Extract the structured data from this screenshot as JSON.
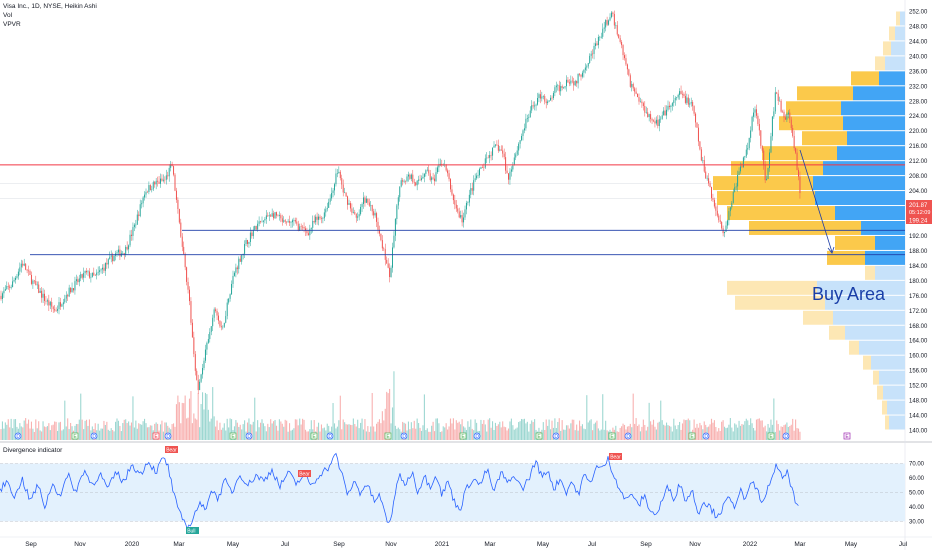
{
  "header": {
    "symbol_line": "Visa Inc., 1D, NYSE, Heikin Ashi",
    "vol_label": "Vol",
    "vpvr_label": "VPVR"
  },
  "oscillator": {
    "title": "Divergence indicator",
    "axis_labels": [
      "70.00",
      "60.00",
      "50.00",
      "40.00",
      "30.00"
    ]
  },
  "price_axis": {
    "labels": [
      "252.00",
      "248.00",
      "244.00",
      "240.00",
      "236.00",
      "232.00",
      "228.00",
      "224.00",
      "220.00",
      "216.00",
      "212.00",
      "208.00",
      "204.00",
      "200.00",
      "196.00",
      "192.00",
      "188.00",
      "184.00",
      "180.00",
      "176.00",
      "172.00",
      "168.00",
      "164.00",
      "160.00",
      "156.00",
      "152.00",
      "148.00",
      "144.00",
      "140.00"
    ],
    "last_price": "201.87",
    "countdown": "05:12:09",
    "second_price": "199.24"
  },
  "time_axis": {
    "labels": [
      "Sep",
      "Nov",
      "2020",
      "Mar",
      "May",
      "Jul",
      "Sep",
      "Nov",
      "2021",
      "Mar",
      "May",
      "Jul",
      "Sep",
      "Nov",
      "2022",
      "Mar",
      "May",
      "Jul"
    ]
  },
  "annotations": {
    "buy_area": "Buy Area",
    "bear_tag": "Bear",
    "bull_tag": "Bull",
    "div_marker": "D",
    "earn_marker": "E"
  },
  "colors": {
    "up_candle": "#26a69a",
    "down_candle": "#ef5350",
    "resistance_line": "#f23645",
    "support_line": "#1e3ea8",
    "vpvr_value_area_up": "#42a5f5",
    "vpvr_value_area_down": "#fbc94b",
    "vpvr_outer_up": "#c7e2fa",
    "vpvr_outer_down": "#fde7b4",
    "oscillator_line": "#2962ff",
    "oscillator_band": "#e3f1fd",
    "buy_area_text": "#1a3fa8"
  },
  "chart_data": {
    "type": "candlestick",
    "ylim": [
      138,
      254
    ],
    "oscillator_ylim": [
      24,
      78
    ],
    "horizontal_levels": [
      211,
      193.5,
      187
    ],
    "price_path": [
      [
        0,
        176
      ],
      [
        12,
        179
      ],
      [
        22,
        185
      ],
      [
        32,
        180
      ],
      [
        45,
        175
      ],
      [
        55,
        172
      ],
      [
        65,
        176
      ],
      [
        75,
        179
      ],
      [
        85,
        182
      ],
      [
        95,
        181
      ],
      [
        105,
        184
      ],
      [
        115,
        187
      ],
      [
        125,
        188
      ],
      [
        135,
        195
      ],
      [
        145,
        204
      ],
      [
        155,
        206
      ],
      [
        165,
        207
      ],
      [
        172,
        211
      ],
      [
        178,
        198
      ],
      [
        183,
        188
      ],
      [
        188,
        178
      ],
      [
        193,
        163
      ],
      [
        198,
        150
      ],
      [
        203,
        158
      ],
      [
        210,
        166
      ],
      [
        215,
        173
      ],
      [
        222,
        166
      ],
      [
        228,
        175
      ],
      [
        234,
        182
      ],
      [
        240,
        186
      ],
      [
        246,
        190
      ],
      [
        252,
        193
      ],
      [
        258,
        195
      ],
      [
        264,
        196
      ],
      [
        270,
        198
      ],
      [
        278,
        197
      ],
      [
        285,
        195
      ],
      [
        292,
        196
      ],
      [
        300,
        194
      ],
      [
        308,
        193
      ],
      [
        315,
        196
      ],
      [
        322,
        197
      ],
      [
        330,
        202
      ],
      [
        338,
        210
      ],
      [
        343,
        204
      ],
      [
        350,
        200
      ],
      [
        357,
        196
      ],
      [
        364,
        202
      ],
      [
        370,
        200
      ],
      [
        376,
        197
      ],
      [
        382,
        190
      ],
      [
        387,
        184
      ],
      [
        390,
        181
      ],
      [
        394,
        192
      ],
      [
        398,
        203
      ],
      [
        402,
        207
      ],
      [
        410,
        208
      ],
      [
        418,
        206
      ],
      [
        426,
        210
      ],
      [
        434,
        206
      ],
      [
        440,
        212
      ],
      [
        446,
        210
      ],
      [
        452,
        203
      ],
      [
        458,
        198
      ],
      [
        463,
        196
      ],
      [
        468,
        202
      ],
      [
        475,
        207
      ],
      [
        482,
        210
      ],
      [
        490,
        214
      ],
      [
        497,
        216
      ],
      [
        503,
        214
      ],
      [
        508,
        207
      ],
      [
        513,
        212
      ],
      [
        518,
        216
      ],
      [
        524,
        221
      ],
      [
        530,
        225
      ],
      [
        536,
        228
      ],
      [
        542,
        230
      ],
      [
        548,
        227
      ],
      [
        555,
        231
      ],
      [
        562,
        232
      ],
      [
        568,
        234
      ],
      [
        575,
        233
      ],
      [
        582,
        236
      ],
      [
        588,
        239
      ],
      [
        594,
        242
      ],
      [
        600,
        245
      ],
      [
        606,
        249
      ],
      [
        612,
        251
      ],
      [
        618,
        246
      ],
      [
        624,
        240
      ],
      [
        630,
        233
      ],
      [
        636,
        230
      ],
      [
        642,
        227
      ],
      [
        650,
        224
      ],
      [
        658,
        222
      ],
      [
        665,
        225
      ],
      [
        672,
        227
      ],
      [
        680,
        230
      ],
      [
        688,
        228
      ],
      [
        693,
        226
      ],
      [
        697,
        220
      ],
      [
        701,
        213
      ],
      [
        705,
        209
      ],
      [
        710,
        205
      ],
      [
        715,
        199
      ],
      [
        720,
        196
      ],
      [
        724,
        193
      ],
      [
        728,
        197
      ],
      [
        733,
        203
      ],
      [
        738,
        208
      ],
      [
        743,
        212
      ],
      [
        748,
        216
      ],
      [
        752,
        224
      ],
      [
        756,
        226
      ],
      [
        760,
        219
      ],
      [
        763,
        212
      ],
      [
        766,
        205
      ],
      [
        769,
        212
      ],
      [
        772,
        222
      ],
      [
        776,
        231
      ],
      [
        780,
        227
      ],
      [
        784,
        223
      ],
      [
        788,
        225
      ],
      [
        792,
        220
      ],
      [
        796,
        213
      ],
      [
        800,
        204
      ]
    ],
    "volume_profile": [
      {
        "price": 250,
        "up": 5,
        "down": 4
      },
      {
        "price": 246,
        "up": 10,
        "down": 6
      },
      {
        "price": 242,
        "up": 14,
        "down": 8
      },
      {
        "price": 238,
        "up": 20,
        "down": 10
      },
      {
        "price": 234,
        "up": 26,
        "down": 28
      },
      {
        "price": 230,
        "up": 52,
        "down": 56
      },
      {
        "price": 226,
        "up": 64,
        "down": 55
      },
      {
        "price": 222,
        "up": 62,
        "down": 64
      },
      {
        "price": 218,
        "up": 58,
        "down": 45
      },
      {
        "price": 214,
        "up": 68,
        "down": 75
      },
      {
        "price": 210,
        "up": 82,
        "down": 92
      },
      {
        "price": 206,
        "up": 92,
        "down": 100
      },
      {
        "price": 202,
        "up": 90,
        "down": 98
      },
      {
        "price": 198,
        "up": 70,
        "down": 108
      },
      {
        "price": 194,
        "up": 44,
        "down": 112
      },
      {
        "price": 190,
        "up": 30,
        "down": 40
      },
      {
        "price": 186,
        "up": 40,
        "down": 38
      },
      {
        "price": 182,
        "up": 30,
        "down": 10
      },
      {
        "price": 178,
        "up": 88,
        "down": 90
      },
      {
        "price": 174,
        "up": 80,
        "down": 90
      },
      {
        "price": 170,
        "up": 72,
        "down": 30
      },
      {
        "price": 166,
        "up": 60,
        "down": 16
      },
      {
        "price": 162,
        "up": 46,
        "down": 10
      },
      {
        "price": 158,
        "up": 34,
        "down": 8
      },
      {
        "price": 154,
        "up": 26,
        "down": 6
      },
      {
        "price": 150,
        "up": 22,
        "down": 6
      },
      {
        "price": 146,
        "up": 18,
        "down": 5
      },
      {
        "price": 142,
        "up": 16,
        "down": 4
      }
    ],
    "oscillator": [
      [
        0,
        52
      ],
      [
        8,
        58
      ],
      [
        15,
        46
      ],
      [
        22,
        60
      ],
      [
        30,
        44
      ],
      [
        38,
        55
      ],
      [
        45,
        40
      ],
      [
        52,
        56
      ],
      [
        60,
        48
      ],
      [
        68,
        62
      ],
      [
        76,
        50
      ],
      [
        84,
        66
      ],
      [
        92,
        55
      ],
      [
        100,
        63
      ],
      [
        108,
        52
      ],
      [
        116,
        64
      ],
      [
        124,
        57
      ],
      [
        132,
        70
      ],
      [
        140,
        62
      ],
      [
        148,
        72
      ],
      [
        156,
        64
      ],
      [
        163,
        74
      ],
      [
        168,
        68
      ],
      [
        174,
        48
      ],
      [
        179,
        36
      ],
      [
        184,
        30
      ],
      [
        189,
        26
      ],
      [
        194,
        34
      ],
      [
        199,
        42
      ],
      [
        205,
        38
      ],
      [
        211,
        52
      ],
      [
        218,
        46
      ],
      [
        225,
        58
      ],
      [
        232,
        50
      ],
      [
        240,
        63
      ],
      [
        248,
        55
      ],
      [
        256,
        62
      ],
      [
        264,
        58
      ],
      [
        272,
        66
      ],
      [
        280,
        54
      ],
      [
        288,
        64
      ],
      [
        296,
        56
      ],
      [
        304,
        62
      ],
      [
        312,
        55
      ],
      [
        320,
        63
      ],
      [
        328,
        67
      ],
      [
        336,
        76
      ],
      [
        342,
        62
      ],
      [
        348,
        48
      ],
      [
        354,
        58
      ],
      [
        360,
        50
      ],
      [
        367,
        56
      ],
      [
        374,
        44
      ],
      [
        380,
        48
      ],
      [
        386,
        32
      ],
      [
        390,
        28
      ],
      [
        394,
        46
      ],
      [
        400,
        62
      ],
      [
        406,
        55
      ],
      [
        412,
        65
      ],
      [
        418,
        50
      ],
      [
        424,
        62
      ],
      [
        430,
        54
      ],
      [
        436,
        63
      ],
      [
        442,
        48
      ],
      [
        448,
        58
      ],
      [
        454,
        44
      ],
      [
        460,
        38
      ],
      [
        466,
        52
      ],
      [
        473,
        60
      ],
      [
        480,
        55
      ],
      [
        487,
        66
      ],
      [
        494,
        50
      ],
      [
        501,
        64
      ],
      [
        508,
        56
      ],
      [
        515,
        62
      ],
      [
        522,
        52
      ],
      [
        529,
        60
      ],
      [
        536,
        72
      ],
      [
        542,
        60
      ],
      [
        548,
        66
      ],
      [
        554,
        52
      ],
      [
        560,
        60
      ],
      [
        566,
        50
      ],
      [
        572,
        58
      ],
      [
        578,
        48
      ],
      [
        584,
        62
      ],
      [
        590,
        56
      ],
      [
        596,
        68
      ],
      [
        602,
        66
      ],
      [
        608,
        73
      ],
      [
        614,
        62
      ],
      [
        620,
        52
      ],
      [
        626,
        44
      ],
      [
        632,
        50
      ],
      [
        638,
        40
      ],
      [
        644,
        48
      ],
      [
        650,
        38
      ],
      [
        656,
        34
      ],
      [
        662,
        44
      ],
      [
        668,
        54
      ],
      [
        674,
        46
      ],
      [
        680,
        56
      ],
      [
        686,
        44
      ],
      [
        692,
        52
      ],
      [
        698,
        36
      ],
      [
        704,
        44
      ],
      [
        710,
        40
      ],
      [
        716,
        34
      ],
      [
        722,
        38
      ],
      [
        728,
        46
      ],
      [
        734,
        40
      ],
      [
        740,
        52
      ],
      [
        746,
        44
      ],
      [
        752,
        58
      ],
      [
        758,
        50
      ],
      [
        764,
        42
      ],
      [
        770,
        58
      ],
      [
        776,
        68
      ],
      [
        782,
        60
      ],
      [
        788,
        64
      ],
      [
        792,
        52
      ],
      [
        796,
        42
      ],
      [
        800,
        36
      ]
    ]
  }
}
